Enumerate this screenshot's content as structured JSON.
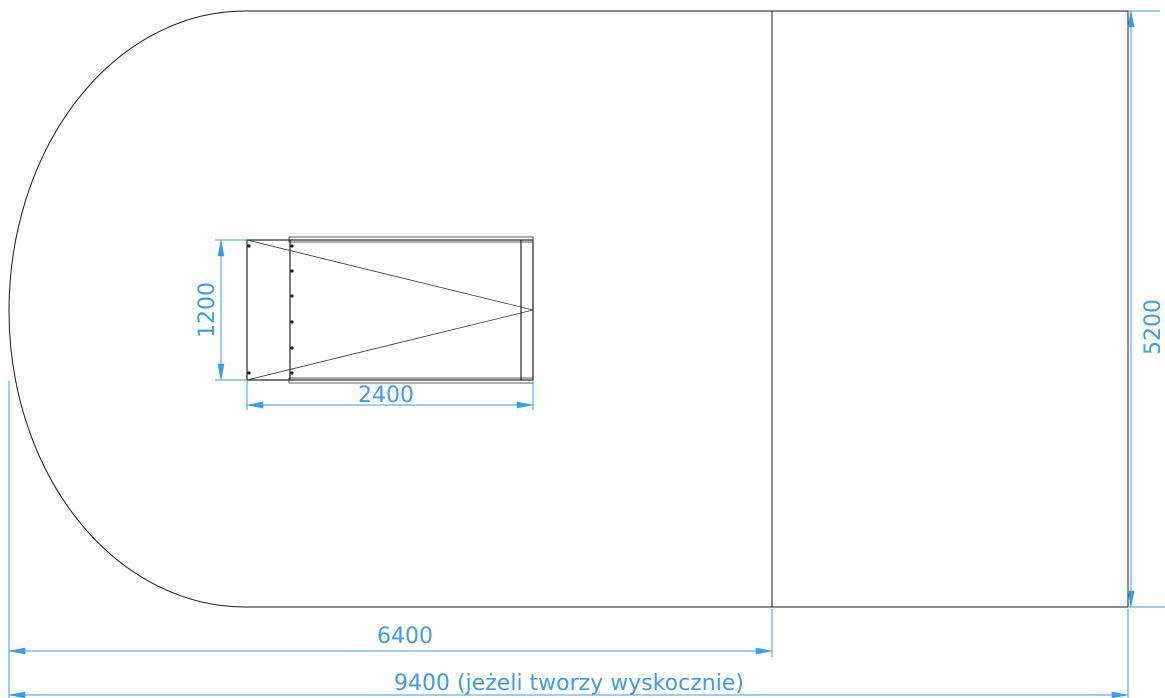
{
  "drawing": {
    "dimensions": {
      "width_total": "9400 (jeżeli tworzy wyskocznie)",
      "width_main": "6400",
      "height_total": "5200",
      "object_width": "2400",
      "object_height": "1200"
    },
    "colors": {
      "outline": "#1a1a1a",
      "dimension": "#3d9be9",
      "background": "#ffffff"
    }
  }
}
